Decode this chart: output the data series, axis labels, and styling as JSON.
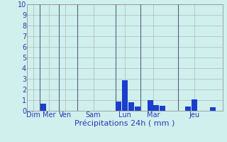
{
  "xlabel": "Précipitations 24h ( mm )",
  "background_color": "#cff0ec",
  "bar_color": "#1a3fcc",
  "grid_color": "#b0b8b8",
  "vline_color": "#5a6080",
  "ylim": [
    0,
    10
  ],
  "yticks": [
    0,
    1,
    2,
    3,
    4,
    5,
    6,
    7,
    8,
    9,
    10
  ],
  "day_labels": [
    "Dim",
    "Mer",
    "Ven",
    "Sam",
    "Lun",
    "Mar",
    "Jeu"
  ],
  "day_tick_positions": [
    0.5,
    3,
    5.5,
    10,
    15,
    19.5,
    26
  ],
  "vline_positions": [
    1.5,
    4.5,
    7.5,
    13.5,
    17.5,
    23.5
  ],
  "bars": [
    {
      "x": 2,
      "height": 0.65
    },
    {
      "x": 14,
      "height": 0.85
    },
    {
      "x": 15,
      "height": 2.9
    },
    {
      "x": 16,
      "height": 0.8
    },
    {
      "x": 17,
      "height": 0.4
    },
    {
      "x": 19,
      "height": 1.0
    },
    {
      "x": 20,
      "height": 0.55
    },
    {
      "x": 21,
      "height": 0.5
    },
    {
      "x": 25,
      "height": 0.4
    },
    {
      "x": 26,
      "height": 1.05
    },
    {
      "x": 29,
      "height": 0.35
    }
  ],
  "xlim": [
    -0.5,
    30.5
  ],
  "xlabel_fontsize": 8,
  "tick_fontsize": 7,
  "tick_color": "#3333bb",
  "label_color": "#3333bb"
}
